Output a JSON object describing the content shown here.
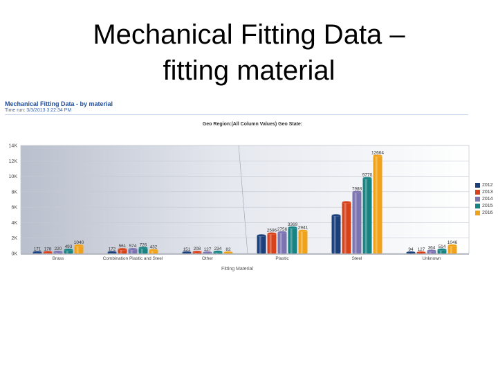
{
  "slide": {
    "title_line1": "Mechanical Fitting Data –",
    "title_line2": "fitting material"
  },
  "report": {
    "title": "Mechanical Fitting Data - by material",
    "time": "Time run: 3/3/2013 3:22:34 PM"
  },
  "chart_data": {
    "type": "bar",
    "title": "Geo Region:(All Column Values) Geo State:",
    "xlabel": "Fitting Material",
    "ylabel": "",
    "ylim": [
      0,
      14000
    ],
    "yticks": [
      0,
      2000,
      4000,
      6000,
      8000,
      10000,
      12000,
      14000
    ],
    "ytick_labels": [
      "0K",
      "2K",
      "4K",
      "6K",
      "8K",
      "10K",
      "12K",
      "14K"
    ],
    "grid": true,
    "legend_position": "right",
    "categories": [
      "Brass",
      "Combination  Plastic  and Steel",
      "Other",
      "Plastic",
      "Steel",
      "Unknown"
    ],
    "series": [
      {
        "name": "2012",
        "color": "#1a3f7a",
        "values": [
          171,
          172,
          151,
          2346,
          4950,
          94
        ]
      },
      {
        "name": "2013",
        "color": "#d8421a",
        "values": [
          178,
          561,
          208,
          2596,
          6640,
          127
        ]
      },
      {
        "name": "2014",
        "color": "#7b74b0",
        "values": [
          220,
          574,
          127,
          2756,
          7988,
          364
        ]
      },
      {
        "name": "2015",
        "color": "#178483",
        "values": [
          493,
          726,
          234,
          3369,
          9770,
          514
        ]
      },
      {
        "name": "2016",
        "color": "#f0a21a",
        "values": [
          1040,
          432,
          82,
          2941,
          12664,
          1046
        ]
      }
    ],
    "data_labels": [
      [
        "171",
        "172",
        "151",
        "",
        "",
        "94"
      ],
      [
        "178",
        "561",
        "208",
        "2596",
        "",
        "127"
      ],
      [
        "220",
        "574",
        "127",
        "2756",
        "7988",
        "364"
      ],
      [
        "493",
        "726",
        "234",
        "3369",
        "9770",
        "514"
      ],
      [
        "1040",
        "432",
        "82",
        "2941",
        "12664",
        "1046"
      ]
    ]
  }
}
